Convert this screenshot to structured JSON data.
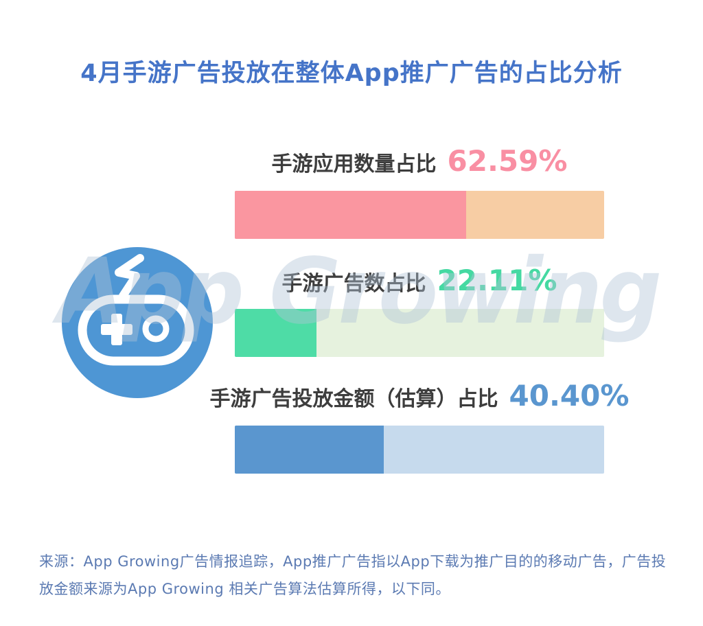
{
  "title": {
    "text": "4月手游广告投放在整体App推广广告的占比分析",
    "color": "#4574C8"
  },
  "watermark": {
    "text": "App Growing",
    "color": "rgba(176,196,215,0.42)"
  },
  "logo": {
    "semantic": "app-growing-gamepad-logo",
    "circle_color": "#4E96D4",
    "glyph_color": "#FFFFFF"
  },
  "chart_data": {
    "type": "bar",
    "orientation": "horizontal",
    "value_unit": "%",
    "xlim": [
      0,
      100
    ],
    "grid": false,
    "label_color": "#3D3D3D",
    "bars": [
      {
        "label": "手游应用数量占比",
        "value": 62.59,
        "value_label": "62.59%",
        "fill": "#FA96A0",
        "track": "#F7CDA4",
        "value_color": "#F98FA3"
      },
      {
        "label": "手游广告数占比",
        "value": 22.11,
        "value_label": "22.11%",
        "fill": "#4EDCA6",
        "track": "#E6F2DE",
        "value_color": "#45D9A2"
      },
      {
        "label": "手游广告投放金额（估算）占比",
        "value": 40.4,
        "value_label": "40.40%",
        "fill": "#5A96CF",
        "track": "#C6DAED",
        "value_color": "#5A96CF"
      }
    ]
  },
  "footer": {
    "source_text": "来源：App Growing广告情报追踪，App推广广告指以App下载为推广目的的移动广告，广告投放金额来源为App Growing 相关广告算法估算所得，以下同。",
    "color": "#5B7AB2"
  }
}
